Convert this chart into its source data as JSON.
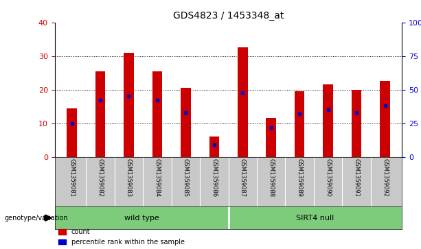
{
  "title": "GDS4823 / 1453348_at",
  "samples": [
    "GSM1359081",
    "GSM1359082",
    "GSM1359083",
    "GSM1359084",
    "GSM1359085",
    "GSM1359086",
    "GSM1359087",
    "GSM1359088",
    "GSM1359089",
    "GSM1359090",
    "GSM1359091",
    "GSM1359092"
  ],
  "counts": [
    14.5,
    25.5,
    31.0,
    25.5,
    20.5,
    6.0,
    32.5,
    11.5,
    19.5,
    21.5,
    20.0,
    22.5
  ],
  "percentile_ranks": [
    25,
    42,
    45,
    42,
    33,
    9,
    48,
    22,
    32,
    35,
    33,
    38
  ],
  "groups": [
    "wild type",
    "wild type",
    "wild type",
    "wild type",
    "wild type",
    "wild type",
    "SIRT4 null",
    "SIRT4 null",
    "SIRT4 null",
    "SIRT4 null",
    "SIRT4 null",
    "SIRT4 null"
  ],
  "bar_color": "#cc0000",
  "percentile_color": "#0000cc",
  "ylim_left": [
    0,
    40
  ],
  "ylim_right": [
    0,
    100
  ],
  "yticks_left": [
    0,
    10,
    20,
    30,
    40
  ],
  "yticks_right": [
    0,
    25,
    50,
    75,
    100
  ],
  "bar_width": 0.35,
  "tick_label_area_color": "#c8c8c8",
  "group_label_area_color": "#7ccc7c",
  "legend_count_label": "count",
  "legend_percentile_label": "percentile rank within the sample",
  "genotype_label": "genotype/variation"
}
